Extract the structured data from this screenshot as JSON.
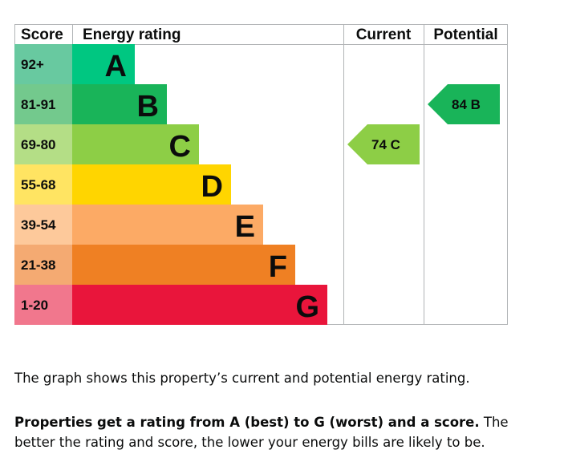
{
  "chart_data": {
    "type": "bar",
    "headers": {
      "score": "Score",
      "rating": "Energy rating",
      "current": "Current",
      "potential": "Potential"
    },
    "bands": [
      {
        "letter": "A",
        "range": "92+",
        "color": "#00c781",
        "score_color": "#68c9a0"
      },
      {
        "letter": "B",
        "range": "81-91",
        "color": "#19b459",
        "score_color": "#73c98d"
      },
      {
        "letter": "C",
        "range": "69-80",
        "color": "#8dce46",
        "score_color": "#b4de86"
      },
      {
        "letter": "D",
        "range": "55-68",
        "color": "#ffd500",
        "score_color": "#ffe462"
      },
      {
        "letter": "E",
        "range": "39-54",
        "color": "#fcaa65",
        "score_color": "#fdc99b"
      },
      {
        "letter": "F",
        "range": "21-38",
        "color": "#ef8023",
        "score_color": "#f4aa72"
      },
      {
        "letter": "G",
        "range": "1-20",
        "color": "#e9153b",
        "score_color": "#f1778d"
      }
    ],
    "current": {
      "score": 74,
      "letter": "C",
      "label": "74 C"
    },
    "potential": {
      "score": 84,
      "letter": "B",
      "label": "84 B"
    }
  },
  "caption": {
    "line1": "The graph shows this property’s current and potential energy rating.",
    "bold": "Properties get a rating from A (best) to G (worst) and a score.",
    "rest": " The better the rating and score, the lower your energy bills are likely to be."
  }
}
